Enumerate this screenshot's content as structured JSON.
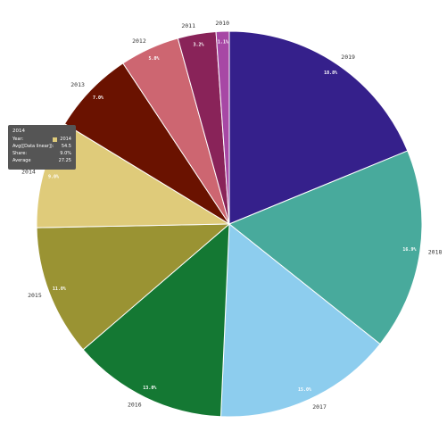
{
  "chart_data": {
    "type": "pie",
    "start_angle_deg": 0,
    "direction": "clockwise",
    "slices": [
      {
        "label": "2019",
        "value_label": "18.8%",
        "value": 18.8,
        "color": "#35208b"
      },
      {
        "label": "2018",
        "value_label": "16.9%",
        "value": 16.9,
        "color": "#48aa9c"
      },
      {
        "label": "2017",
        "value_label": "15.0%",
        "value": 15.0,
        "color": "#8dcdee"
      },
      {
        "label": "2016",
        "value_label": "13.0%",
        "value": 13.0,
        "color": "#147833"
      },
      {
        "label": "2015",
        "value_label": "11.0%",
        "value": 11.0,
        "color": "#9a9333"
      },
      {
        "label": "2014",
        "value_label": "9.0%",
        "value": 9.0,
        "color": "#dfcb7a"
      },
      {
        "label": "2013",
        "value_label": "7.0%",
        "value": 7.0,
        "color": "#6a1200"
      },
      {
        "label": "2012",
        "value_label": "5.0%",
        "value": 5.0,
        "color": "#cd6671"
      },
      {
        "label": "2011",
        "value_label": "3.2%",
        "value": 3.2,
        "color": "#892359"
      },
      {
        "label": "2010",
        "value_label": "1.1%",
        "value": 1.1,
        "color": "#a748a5"
      }
    ],
    "legend": "none"
  },
  "tooltip": {
    "title": "2014",
    "rows": [
      {
        "key": "Year:",
        "value": "2014"
      },
      {
        "key": "Avg([Data linear]):",
        "value": "54.5"
      },
      {
        "key": "Share:",
        "value": "9.0%"
      },
      {
        "key": "Average",
        "value": "27.25"
      }
    ]
  }
}
